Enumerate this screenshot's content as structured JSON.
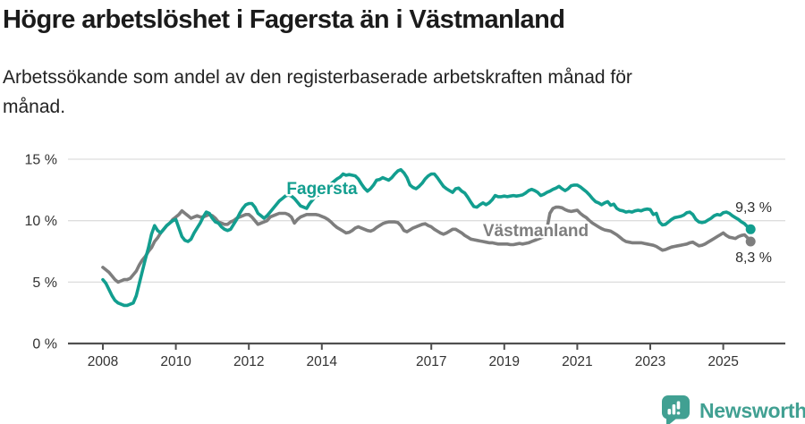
{
  "header": {
    "title": "Högre arbetslöshet i Fagersta än i Västmanland",
    "subtitle": "Arbetssökande som andel av den registerbaserade arbetskraften månad för månad."
  },
  "chart_data": {
    "type": "line",
    "title": "Högre arbetslöshet i Fagersta än i Västmanland",
    "subtitle": "Arbetssökande som andel av den registerbaserade arbetskraften månad för månad.",
    "xlabel": "",
    "ylabel": "",
    "ylim": [
      0,
      15
    ],
    "grid": true,
    "legend_position": "inline-labels-on-lines",
    "x_ticks": [
      {
        "value": 2008,
        "label": "2008"
      },
      {
        "value": 2010,
        "label": "2010"
      },
      {
        "value": 2012,
        "label": "2012"
      },
      {
        "value": 2014,
        "label": "2014"
      },
      {
        "value": 2017,
        "label": "2017"
      },
      {
        "value": 2019,
        "label": "2019"
      },
      {
        "value": 2021,
        "label": "2021"
      },
      {
        "value": 2023,
        "label": "2023"
      },
      {
        "value": 2025,
        "label": "2025"
      }
    ],
    "y_ticks": [
      {
        "value": 0,
        "label": "0 %"
      },
      {
        "value": 5,
        "label": "5 %"
      },
      {
        "value": 10,
        "label": "10 %"
      },
      {
        "value": 15,
        "label": "15 %"
      }
    ],
    "series": [
      {
        "name": "Fagersta",
        "color": "#129e8f",
        "end_label": "9,3 %",
        "end_value": 9.3,
        "x_start": 2008.0,
        "x_step": 0.0833333,
        "values": [
          5.2,
          4.9,
          4.4,
          3.9,
          3.5,
          3.3,
          3.2,
          3.1,
          3.1,
          3.2,
          3.3,
          3.9,
          4.9,
          5.9,
          6.9,
          7.8,
          8.9,
          9.6,
          9.2,
          9.0,
          9.3,
          9.6,
          9.8,
          10.0,
          10.1,
          9.4,
          8.7,
          8.4,
          8.3,
          8.5,
          9.0,
          9.4,
          9.8,
          10.3,
          10.7,
          10.6,
          10.2,
          9.9,
          9.8,
          9.5,
          9.3,
          9.2,
          9.3,
          9.7,
          10.1,
          10.6,
          11.0,
          11.3,
          11.4,
          11.4,
          11.1,
          10.6,
          10.4,
          10.2,
          10.4,
          10.7,
          11.0,
          11.3,
          11.6,
          11.8,
          12.0,
          12.1,
          12.0,
          11.8,
          11.5,
          11.2,
          11.1,
          11.0,
          11.4,
          11.7,
          12.0,
          12.1,
          12.3,
          12.5,
          12.75,
          13.0,
          13.2,
          13.4,
          13.55,
          13.8,
          13.7,
          13.75,
          13.7,
          13.65,
          13.4,
          13.0,
          12.65,
          12.4,
          12.6,
          12.9,
          13.3,
          13.35,
          13.5,
          13.4,
          13.3,
          13.5,
          13.8,
          14.05,
          14.15,
          13.9,
          13.5,
          12.9,
          12.7,
          12.6,
          12.8,
          13.05,
          13.4,
          13.65,
          13.8,
          13.8,
          13.5,
          13.15,
          12.8,
          12.6,
          12.45,
          12.3,
          12.6,
          12.65,
          12.4,
          12.25,
          11.9,
          11.5,
          11.15,
          11.1,
          11.3,
          11.45,
          11.3,
          11.45,
          11.7,
          12.05,
          11.95,
          11.95,
          12.0,
          11.95,
          12.0,
          12.05,
          12.0,
          12.05,
          12.1,
          12.25,
          12.45,
          12.55,
          12.45,
          12.3,
          12.05,
          12.15,
          12.3,
          12.4,
          12.55,
          12.65,
          12.8,
          12.6,
          12.45,
          12.6,
          12.85,
          12.9,
          12.9,
          12.75,
          12.55,
          12.35,
          12.1,
          11.8,
          11.55,
          11.45,
          11.3,
          11.45,
          11.55,
          11.25,
          11.35,
          11.0,
          10.85,
          10.8,
          10.7,
          10.75,
          10.7,
          10.8,
          10.85,
          10.8,
          10.9,
          10.95,
          10.9,
          10.5,
          10.6,
          9.9,
          9.65,
          9.7,
          9.9,
          10.1,
          10.25,
          10.3,
          10.35,
          10.45,
          10.65,
          10.7,
          10.5,
          10.1,
          9.9,
          9.85,
          9.9,
          10.05,
          10.2,
          10.4,
          10.5,
          10.45,
          10.65,
          10.7,
          10.6,
          10.4,
          10.25,
          10.1,
          9.9,
          9.75,
          9.5,
          9.3
        ]
      },
      {
        "name": "Västmanland",
        "color": "#7e7e7e",
        "end_label": "8,3 %",
        "end_value": 8.3,
        "x_start": 2008.0,
        "x_step": 0.0833333,
        "values": [
          6.2,
          6.0,
          5.8,
          5.5,
          5.2,
          5.0,
          5.1,
          5.2,
          5.2,
          5.3,
          5.6,
          5.9,
          6.4,
          6.8,
          7.1,
          7.5,
          7.8,
          8.3,
          8.6,
          9.0,
          9.3,
          9.6,
          9.8,
          10.1,
          10.3,
          10.5,
          10.8,
          10.6,
          10.4,
          10.2,
          10.3,
          10.4,
          10.3,
          10.3,
          10.4,
          10.5,
          10.4,
          10.2,
          9.9,
          9.8,
          9.7,
          9.7,
          9.9,
          10.0,
          10.2,
          10.3,
          10.4,
          10.5,
          10.5,
          10.3,
          10.0,
          9.7,
          9.8,
          9.9,
          10.0,
          10.3,
          10.4,
          10.5,
          10.6,
          10.6,
          10.6,
          10.5,
          10.3,
          9.8,
          10.1,
          10.3,
          10.4,
          10.5,
          10.5,
          10.5,
          10.5,
          10.45,
          10.35,
          10.25,
          10.1,
          9.9,
          9.65,
          9.45,
          9.3,
          9.15,
          9.0,
          9.05,
          9.2,
          9.4,
          9.5,
          9.4,
          9.3,
          9.2,
          9.15,
          9.25,
          9.45,
          9.6,
          9.75,
          9.85,
          9.9,
          9.9,
          9.9,
          9.85,
          9.6,
          9.2,
          9.1,
          9.25,
          9.4,
          9.5,
          9.6,
          9.7,
          9.75,
          9.6,
          9.5,
          9.3,
          9.15,
          9.0,
          8.9,
          9.0,
          9.15,
          9.3,
          9.3,
          9.15,
          9.0,
          8.8,
          8.65,
          8.5,
          8.45,
          8.4,
          8.35,
          8.3,
          8.25,
          8.2,
          8.2,
          8.15,
          8.1,
          8.1,
          8.1,
          8.1,
          8.05,
          8.05,
          8.1,
          8.15,
          8.1,
          8.15,
          8.2,
          8.3,
          8.4,
          8.5,
          8.6,
          8.7,
          9.3,
          10.6,
          11.0,
          11.1,
          11.1,
          11.05,
          10.9,
          10.8,
          10.75,
          10.8,
          10.85,
          10.6,
          10.4,
          10.25,
          10.0,
          9.8,
          9.65,
          9.5,
          9.35,
          9.25,
          9.2,
          9.15,
          9.0,
          8.85,
          8.65,
          8.45,
          8.3,
          8.25,
          8.2,
          8.2,
          8.2,
          8.2,
          8.15,
          8.1,
          8.05,
          8.0,
          7.9,
          7.75,
          7.6,
          7.65,
          7.75,
          7.85,
          7.9,
          7.95,
          8.0,
          8.05,
          8.1,
          8.2,
          8.25,
          8.1,
          7.95,
          8.0,
          8.1,
          8.25,
          8.4,
          8.55,
          8.7,
          8.85,
          9.0,
          8.8,
          8.65,
          8.6,
          8.55,
          8.7,
          8.8,
          8.85,
          8.6,
          8.3
        ]
      }
    ]
  },
  "colors": {
    "accent_teal": "#129e8f",
    "series_gray": "#7e7e7e",
    "grid": "#dddddd",
    "axis": "#4f4f4f",
    "brand_teal": "#41a092"
  },
  "footer": {
    "brand": "Newsworthy"
  }
}
